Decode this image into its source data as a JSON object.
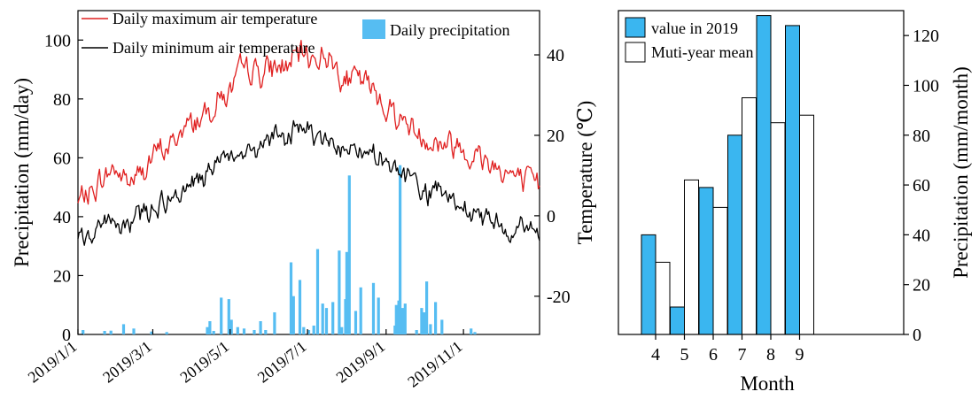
{
  "chart_data": [
    {
      "type": "line",
      "x_axis": {
        "type": "date",
        "range": [
          "2019-01-01",
          "2019-12-31"
        ],
        "tick_labels": [
          "2019/1/1",
          "2019/3/1",
          "2019/5/1",
          "2019/7/1",
          "2019/9/1",
          "2019/11/1"
        ],
        "tick_dates": [
          "2019-01-01",
          "2019-03-01",
          "2019-05-01",
          "2019-07-01",
          "2019-09-01",
          "2019-11-01"
        ]
      },
      "y_left": {
        "label": "Precipitation (mm/day)",
        "ylim": [
          0,
          110
        ],
        "ticks": [
          0,
          20,
          40,
          60,
          80,
          100
        ]
      },
      "y_right": {
        "label": "Temperature (℃)",
        "ylim": [
          -29.5,
          51
        ],
        "ticks": [
          -20,
          0,
          20,
          40
        ]
      },
      "series": [
        {
          "name": "Daily maximum air temperature",
          "kind": "line",
          "axis": "right",
          "color": "#e02020",
          "anchors": [
            [
              "2019-01-01",
              3
            ],
            [
              "2019-01-15",
              7
            ],
            [
              "2019-01-30",
              12
            ],
            [
              "2019-02-10",
              9
            ],
            [
              "2019-02-25",
              13
            ],
            [
              "2019-03-10",
              16
            ],
            [
              "2019-03-25",
              21
            ],
            [
              "2019-04-10",
              26
            ],
            [
              "2019-04-20",
              30
            ],
            [
              "2019-05-01",
              31
            ],
            [
              "2019-05-15",
              37
            ],
            [
              "2019-05-31",
              36
            ],
            [
              "2019-06-15",
              38
            ],
            [
              "2019-07-01",
              39
            ],
            [
              "2019-07-15",
              40
            ],
            [
              "2019-07-30",
              36
            ],
            [
              "2019-08-15",
              33
            ],
            [
              "2019-09-01",
              28
            ],
            [
              "2019-09-15",
              23
            ],
            [
              "2019-10-01",
              20
            ],
            [
              "2019-10-15",
              18
            ],
            [
              "2019-11-01",
              17
            ],
            [
              "2019-11-15",
              15
            ],
            [
              "2019-12-01",
              13
            ],
            [
              "2019-12-15",
              9
            ],
            [
              "2019-12-31",
              7
            ]
          ]
        },
        {
          "name": "Daily minimum air temperature",
          "kind": "line",
          "axis": "right",
          "color": "#000000",
          "anchors": [
            [
              "2019-01-01",
              -7
            ],
            [
              "2019-01-15",
              -4
            ],
            [
              "2019-01-30",
              -1
            ],
            [
              "2019-02-15",
              -1
            ],
            [
              "2019-03-01",
              2
            ],
            [
              "2019-03-15",
              6
            ],
            [
              "2019-04-01",
              8
            ],
            [
              "2019-04-15",
              11
            ],
            [
              "2019-05-01",
              13
            ],
            [
              "2019-05-15",
              16
            ],
            [
              "2019-06-01",
              19
            ],
            [
              "2019-06-15",
              20
            ],
            [
              "2019-07-01",
              21
            ],
            [
              "2019-07-15",
              20
            ],
            [
              "2019-08-01",
              17
            ],
            [
              "2019-08-15",
              15
            ],
            [
              "2019-09-01",
              13
            ],
            [
              "2019-09-15",
              10
            ],
            [
              "2019-10-01",
              6
            ],
            [
              "2019-10-15",
              4
            ],
            [
              "2019-11-01",
              1
            ],
            [
              "2019-11-15",
              -1
            ],
            [
              "2019-12-01",
              -2
            ],
            [
              "2019-12-15",
              -3
            ],
            [
              "2019-12-31",
              -4
            ]
          ]
        },
        {
          "name": "Daily precipitation",
          "kind": "bar",
          "axis": "left",
          "color": "#56bdf2",
          "points": [
            [
              "2019-01-05",
              1.5
            ],
            [
              "2019-01-22",
              1.2
            ],
            [
              "2019-01-27",
              1.3
            ],
            [
              "2019-02-06",
              3.5
            ],
            [
              "2019-02-14",
              2.0
            ],
            [
              "2019-02-28",
              1.0
            ],
            [
              "2019-03-12",
              0.8
            ],
            [
              "2019-04-13",
              2.5
            ],
            [
              "2019-04-15",
              4.5
            ],
            [
              "2019-04-18",
              1.2
            ],
            [
              "2019-04-24",
              12.5
            ],
            [
              "2019-04-30",
              12.0
            ],
            [
              "2019-05-02",
              5.0
            ],
            [
              "2019-05-07",
              2.5
            ],
            [
              "2019-05-12",
              2.0
            ],
            [
              "2019-05-20",
              1.5
            ],
            [
              "2019-05-25",
              4.5
            ],
            [
              "2019-05-29",
              1.5
            ],
            [
              "2019-06-05",
              7.5
            ],
            [
              "2019-06-18",
              24.5
            ],
            [
              "2019-06-20",
              13.0
            ],
            [
              "2019-06-25",
              18.5
            ],
            [
              "2019-06-28",
              2.5
            ],
            [
              "2019-07-02",
              1.5
            ],
            [
              "2019-07-06",
              3.0
            ],
            [
              "2019-07-09",
              29.0
            ],
            [
              "2019-07-13",
              10.5
            ],
            [
              "2019-07-16",
              9.0
            ],
            [
              "2019-07-21",
              11.0
            ],
            [
              "2019-07-26",
              28.5
            ],
            [
              "2019-07-28",
              2.5
            ],
            [
              "2019-07-31",
              12.0
            ],
            [
              "2019-08-01",
              28.0
            ],
            [
              "2019-08-03",
              54.0
            ],
            [
              "2019-08-08",
              8.0
            ],
            [
              "2019-08-12",
              16.0
            ],
            [
              "2019-08-22",
              17.5
            ],
            [
              "2019-08-26",
              12.5
            ],
            [
              "2019-09-08",
              3.0
            ],
            [
              "2019-09-09",
              10.0
            ],
            [
              "2019-09-11",
              11.5
            ],
            [
              "2019-09-12",
              57.5
            ],
            [
              "2019-09-14",
              9.0
            ],
            [
              "2019-09-16",
              10.5
            ],
            [
              "2019-09-25",
              1.5
            ],
            [
              "2019-09-29",
              9.0
            ],
            [
              "2019-10-01",
              7.5
            ],
            [
              "2019-10-03",
              18.0
            ],
            [
              "2019-10-06",
              3.5
            ],
            [
              "2019-10-10",
              11.0
            ],
            [
              "2019-10-15",
              5.0
            ],
            [
              "2019-11-07",
              2.0
            ],
            [
              "2019-11-10",
              0.8
            ]
          ]
        }
      ],
      "legend": {
        "placement": "top"
      }
    },
    {
      "type": "bar",
      "categories": [
        "4",
        "5",
        "6",
        "7",
        "8",
        "9"
      ],
      "xlabel": "Month",
      "ylabel": "Precipitation (mm/month)",
      "ylim": [
        0,
        130
      ],
      "yticks": [
        0,
        20,
        40,
        60,
        80,
        100,
        120
      ],
      "series": [
        {
          "name": "value in 2019",
          "color": "#3ab6f0",
          "values": [
            40,
            11,
            59,
            80,
            128,
            124
          ]
        },
        {
          "name": "Muti-year mean",
          "color": "#ffffff",
          "values": [
            29,
            62,
            51,
            95,
            85,
            88
          ]
        }
      ],
      "legend": {
        "placement": "top-left"
      }
    }
  ]
}
